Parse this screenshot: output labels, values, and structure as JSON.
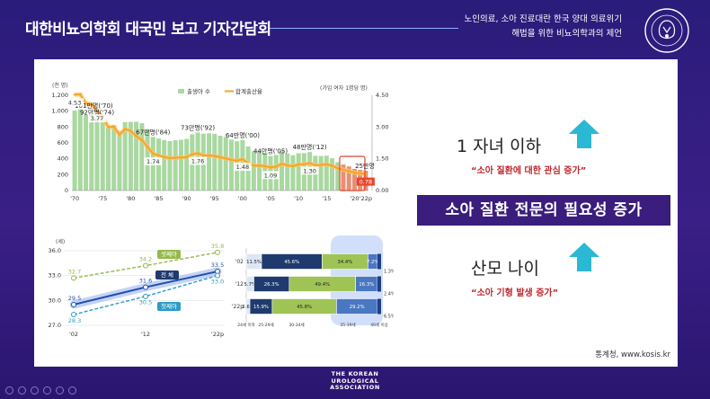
{
  "header": {
    "title": "대한비뇨의학회 대국민 보고 기자간담회",
    "subtitle_line1": "노인의료, 소아 진료대란 한국 양대 의료위기",
    "subtitle_line2": "해법을 위한 비뇨의학과의 제언"
  },
  "colors": {
    "accent_purple": "#3a1d7c",
    "births_bar": "#a9d8a0",
    "fertility_line": "#f5a623",
    "arrow": "#2ab8d4",
    "note_red": "#c0282e"
  },
  "chart_data": [
    {
      "type": "bar",
      "ylabel_left": "(천 명)",
      "ylabel_right": "(가임 여자 1명당 명)",
      "legend": [
        "출생아 수",
        "합계출산율"
      ],
      "yticks_left": [
        "0",
        "200",
        "400",
        "600",
        "800",
        "1,000",
        "1,200"
      ],
      "yticks_right": [
        "0.00",
        "1.50",
        "3.00",
        "4.50"
      ],
      "xticks": [
        "'70",
        "'75",
        "'80",
        "'85",
        "'90",
        "'95",
        "'00",
        "'05",
        "'10",
        "'15",
        "'20",
        "'22p"
      ],
      "ylim_left": [
        0,
        1200
      ],
      "ylim_right": [
        0,
        4.5
      ],
      "births": [
        1007,
        1024,
        952,
        967,
        922,
        874,
        796,
        825,
        750,
        862,
        865,
        867,
        848,
        769,
        675,
        655,
        636,
        623,
        633,
        639,
        650,
        709,
        731,
        716,
        721,
        715,
        691,
        675,
        641,
        621,
        635,
        555,
        495,
        495,
        477,
        435,
        448,
        497,
        466,
        445,
        470,
        471,
        485,
        437,
        435,
        438,
        406,
        358,
        327,
        303,
        273,
        260,
        249
      ],
      "fertility": [
        4.53,
        4.54,
        4.12,
        4.07,
        3.77,
        3.43,
        3.0,
        3.01,
        2.64,
        2.9,
        2.82,
        2.57,
        2.39,
        2.06,
        1.74,
        1.66,
        1.58,
        1.53,
        1.55,
        1.56,
        1.57,
        1.71,
        1.76,
        1.65,
        1.66,
        1.63,
        1.57,
        1.52,
        1.45,
        1.41,
        1.48,
        1.3,
        1.17,
        1.18,
        1.15,
        1.09,
        1.13,
        1.26,
        1.19,
        1.15,
        1.23,
        1.24,
        1.3,
        1.19,
        1.21,
        1.24,
        1.17,
        1.05,
        0.98,
        0.92,
        0.84,
        0.81,
        0.78
      ],
      "bar_labels": [
        "101만명('70)",
        "92만명('74)",
        "67만명('84)",
        "73만명('92)",
        "64만명('00)",
        "44만명('05)",
        "48만명('12)",
        "25만명"
      ],
      "rate_labels": [
        "4.53",
        "3.77",
        "1.74",
        "1.76",
        "1.48",
        "1.09",
        "1.30",
        "0.78"
      ]
    },
    {
      "type": "line",
      "unit": "(세)",
      "yticks": [
        "27.0",
        "30.0",
        "33.0",
        "36.0"
      ],
      "ylim": [
        27,
        36
      ],
      "xticks": [
        "'02",
        "'12",
        "'22p"
      ],
      "series": [
        {
          "name": "셋째아",
          "values": [
            32.7,
            34.2,
            35.8
          ]
        },
        {
          "name": "전 체",
          "values": [
            29.5,
            31.6,
            33.5
          ]
        },
        {
          "name": "첫째아",
          "values": [
            28.3,
            30.5,
            33.0
          ]
        }
      ],
      "value_labels": [
        "32.7",
        "34.2",
        "35.8",
        "29.5",
        "31.6",
        "33.5",
        "28.3",
        "30.5",
        "33.0"
      ]
    },
    {
      "type": "bar",
      "stacked": true,
      "orientation": "horizontal",
      "categories": [
        "'02",
        "'12",
        "'22p"
      ],
      "segments": [
        [
          11.5,
          45.6,
          34.4,
          7.2,
          1.3
        ],
        [
          5.7,
          26.3,
          49.4,
          16.3,
          2.4
        ],
        [
          2.6,
          15.9,
          45.8,
          29.2,
          6.5
        ]
      ],
      "segment_colors": [
        "#dde6f5",
        "#1f3a6e",
        "#9fc455",
        "#4a77c2",
        "#1d3f86"
      ],
      "segment_labels": [
        [
          "11.5%",
          "45.6%",
          "34.4%",
          "7.2%",
          "1.3%"
        ],
        [
          "5.7%",
          "26.3%",
          "49.4%",
          "16.3%",
          "2.4%"
        ],
        [
          "2.6%",
          "15.9%",
          "45.8%",
          "29.2%",
          "6.5%"
        ]
      ],
      "xaxis_labels": [
        "24세 이하",
        "25-29세",
        "30-34세",
        "35-39세",
        "40세 이상"
      ]
    }
  ],
  "right": {
    "point1": "1 자녀 이하",
    "note1": "“소아 질환에 대한 관심 증가”",
    "banner": "소아 질환 전문의 필요성 증가",
    "point2": "산모 나이",
    "note2": "“소아 기형 발생 증가”"
  },
  "source": "통계청, www.kosis.kr",
  "footer": {
    "line1": "THE KOREAN",
    "line2": "UROLOGICAL",
    "line3": "ASSOCIATION"
  }
}
